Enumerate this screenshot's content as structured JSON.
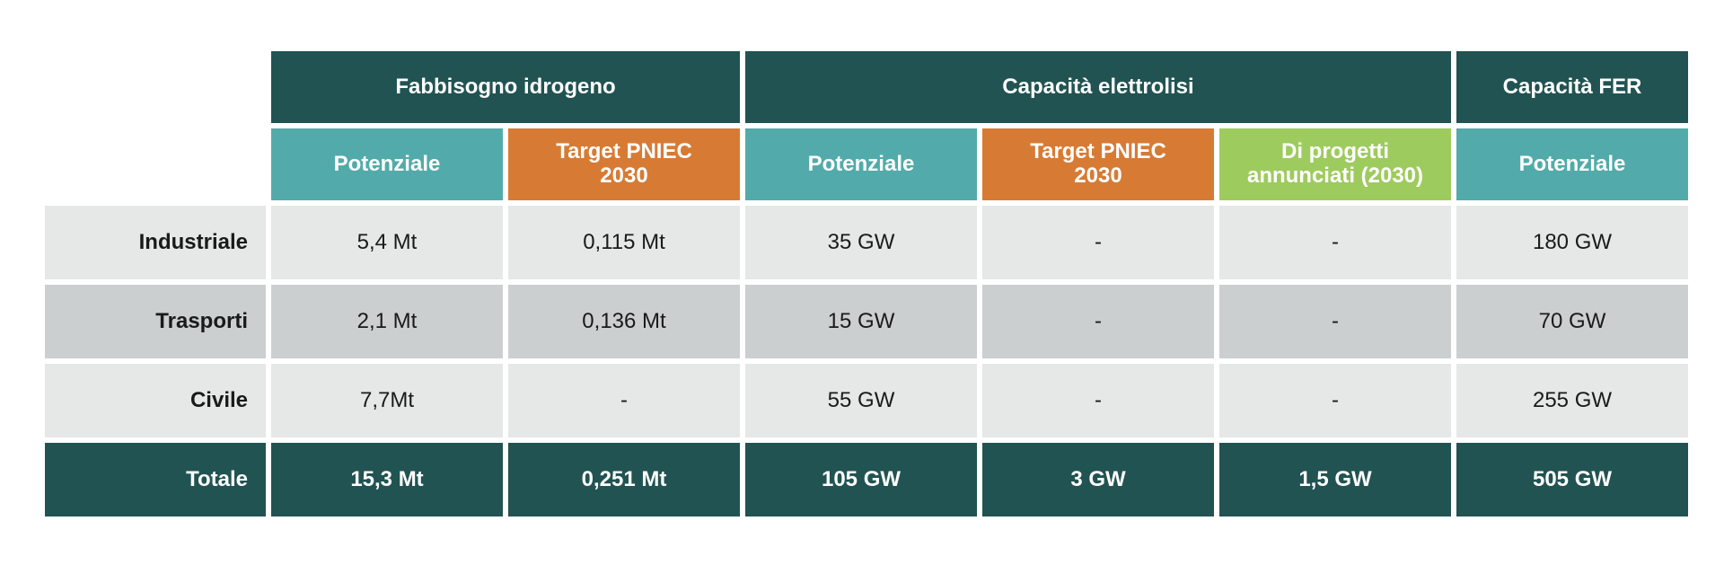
{
  "groups": {
    "fabbisogno": "Fabbisogno idrogeno",
    "capacita_elettrolisi": "Capacità elettrolisi",
    "capacita_fer": "Capacità FER"
  },
  "subheaders": {
    "fab_potenziale": "Potenziale",
    "fab_target": "Target PNIEC\n2030",
    "ele_potenziale": "Potenziale",
    "ele_target": "Target PNIEC\n2030",
    "ele_progetti": "Di progetti\nannunciati (2030)",
    "fer_potenziale": "Potenziale"
  },
  "rows": [
    {
      "label": "Industriale",
      "values": [
        "5,4 Mt",
        "0,115 Mt",
        "35 GW",
        "-",
        "-",
        "180 GW"
      ]
    },
    {
      "label": "Trasporti",
      "values": [
        "2,1 Mt",
        "0,136 Mt",
        "15 GW",
        "-",
        "-",
        "70 GW"
      ]
    },
    {
      "label": "Civile",
      "values": [
        "7,7Mt",
        "-",
        "55 GW",
        "-",
        "-",
        "255 GW"
      ]
    },
    {
      "label": "Totale",
      "values": [
        "15,3 Mt",
        "0,251 Mt",
        "105 GW",
        "3 GW",
        "1,5 GW",
        "505 GW"
      ]
    }
  ],
  "colors": {
    "dark_teal": "#215352",
    "teal": "#52abaa",
    "orange": "#d77b34",
    "green": "#9ecb5d",
    "row_light": "#e6e7e7",
    "row_mid": "#cbcfcf"
  }
}
